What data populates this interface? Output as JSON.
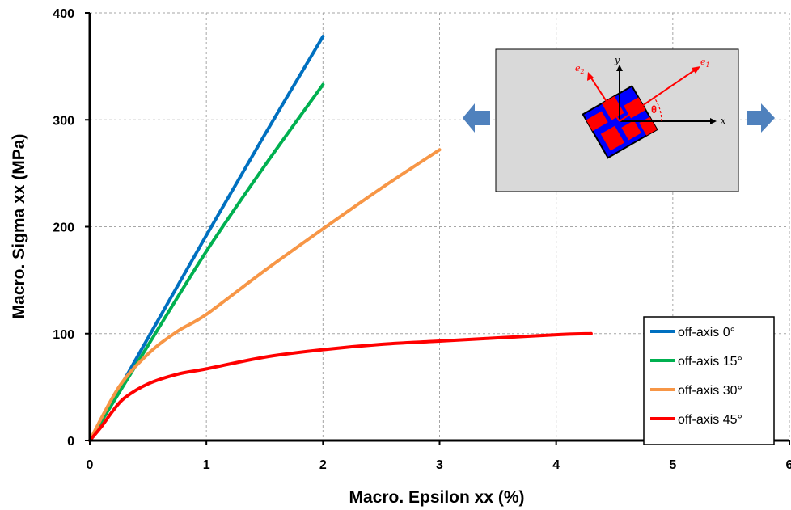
{
  "chart_data": {
    "type": "line",
    "title": "",
    "xlabel": "Macro. Epsilon xx (%)",
    "ylabel": "Macro. Sigma xx (MPa)",
    "xlim": [
      0,
      6
    ],
    "ylim": [
      0,
      400
    ],
    "xticks": [
      0,
      1,
      2,
      3,
      4,
      5,
      6
    ],
    "yticks": [
      0,
      100,
      200,
      300,
      400
    ],
    "grid": true,
    "legend_position": "bottom-right",
    "series": [
      {
        "name": "off-axis 0°",
        "color": "#0070c0",
        "x": [
          0,
          0.5,
          1.0,
          1.5,
          2.0
        ],
        "y": [
          0,
          96,
          192,
          286,
          378
        ]
      },
      {
        "name": "off-axis 15°",
        "color": "#00b050",
        "x": [
          0,
          0.5,
          1.0,
          1.5,
          2.0
        ],
        "y": [
          0,
          89,
          177,
          257,
          333
        ]
      },
      {
        "name": "off-axis 30°",
        "color": "#f79646",
        "x": [
          0,
          0.25,
          0.5,
          0.75,
          1.0,
          1.5,
          2.0,
          2.5,
          3.0
        ],
        "y": [
          0,
          50,
          81,
          102,
          118,
          159,
          198,
          236,
          272
        ]
      },
      {
        "name": "off-axis 45°",
        "color": "#ff0000",
        "x": [
          0,
          0.1,
          0.2,
          0.3,
          0.5,
          0.75,
          1.0,
          1.5,
          2.0,
          2.5,
          3.0,
          3.5,
          4.0,
          4.3
        ],
        "y": [
          0,
          13,
          28,
          40,
          53,
          62,
          67,
          78,
          85,
          90,
          93,
          96,
          99,
          100
        ]
      }
    ]
  },
  "inset": {
    "y_axis_label": "y",
    "x_axis_label": "x",
    "e1_label": "e",
    "e1_sub": "1",
    "e2_label": "e",
    "e2_sub": "2",
    "theta_label": "θ",
    "arrow_color": "#4f81bd",
    "box_fill": "#d9d9d9",
    "vector_color": "#ff0000"
  }
}
